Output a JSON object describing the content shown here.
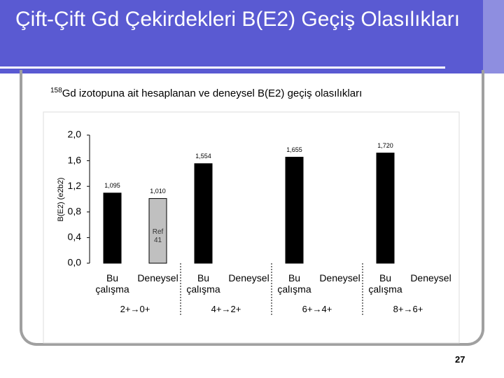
{
  "slide": {
    "title": "Çift-Çift Gd Çekirdekleri B(E2) Geçiş Olasılıkları",
    "subtitle_mass": "158",
    "subtitle": "Gd izotopuna ait hesaplanan ve deneysel B(E2) geçiş olasılıkları",
    "page_number": "27"
  },
  "chart_data": {
    "type": "bar",
    "y_label": "B(E2) (e2b2)",
    "categories": [
      "Bu çalışma",
      "Deneysel",
      "Bu çalışma",
      "Deneysel",
      "Bu çalışma",
      "Deneysel",
      "Bu çalışma",
      "Deneysel"
    ],
    "groups": [
      "2+→0+",
      "4+→2+",
      "6+→4+",
      "8+→6+"
    ],
    "values": [
      1.095,
      1.01,
      1.554,
      null,
      1.655,
      null,
      1.72,
      null
    ],
    "value_labels": [
      "1,095",
      "1,010",
      "1,554",
      null,
      "1,655",
      null,
      "1,720",
      null
    ],
    "colors": [
      "#000000",
      "#c0c0c0",
      "#000000",
      "#c0c0c0",
      "#000000",
      "#c0c0c0",
      "#000000",
      "#c0c0c0"
    ],
    "annotation": "Ref 41",
    "ylim": [
      0,
      2
    ],
    "yticks": [
      {
        "value": 0,
        "label": "0,0"
      },
      {
        "value": 0.4,
        "label": "0,4"
      },
      {
        "value": 0.8,
        "label": "0,8"
      },
      {
        "value": 1.2,
        "label": "1,2"
      },
      {
        "value": 1.6,
        "label": "1,6"
      },
      {
        "value": 2,
        "label": "2,0"
      }
    ]
  }
}
